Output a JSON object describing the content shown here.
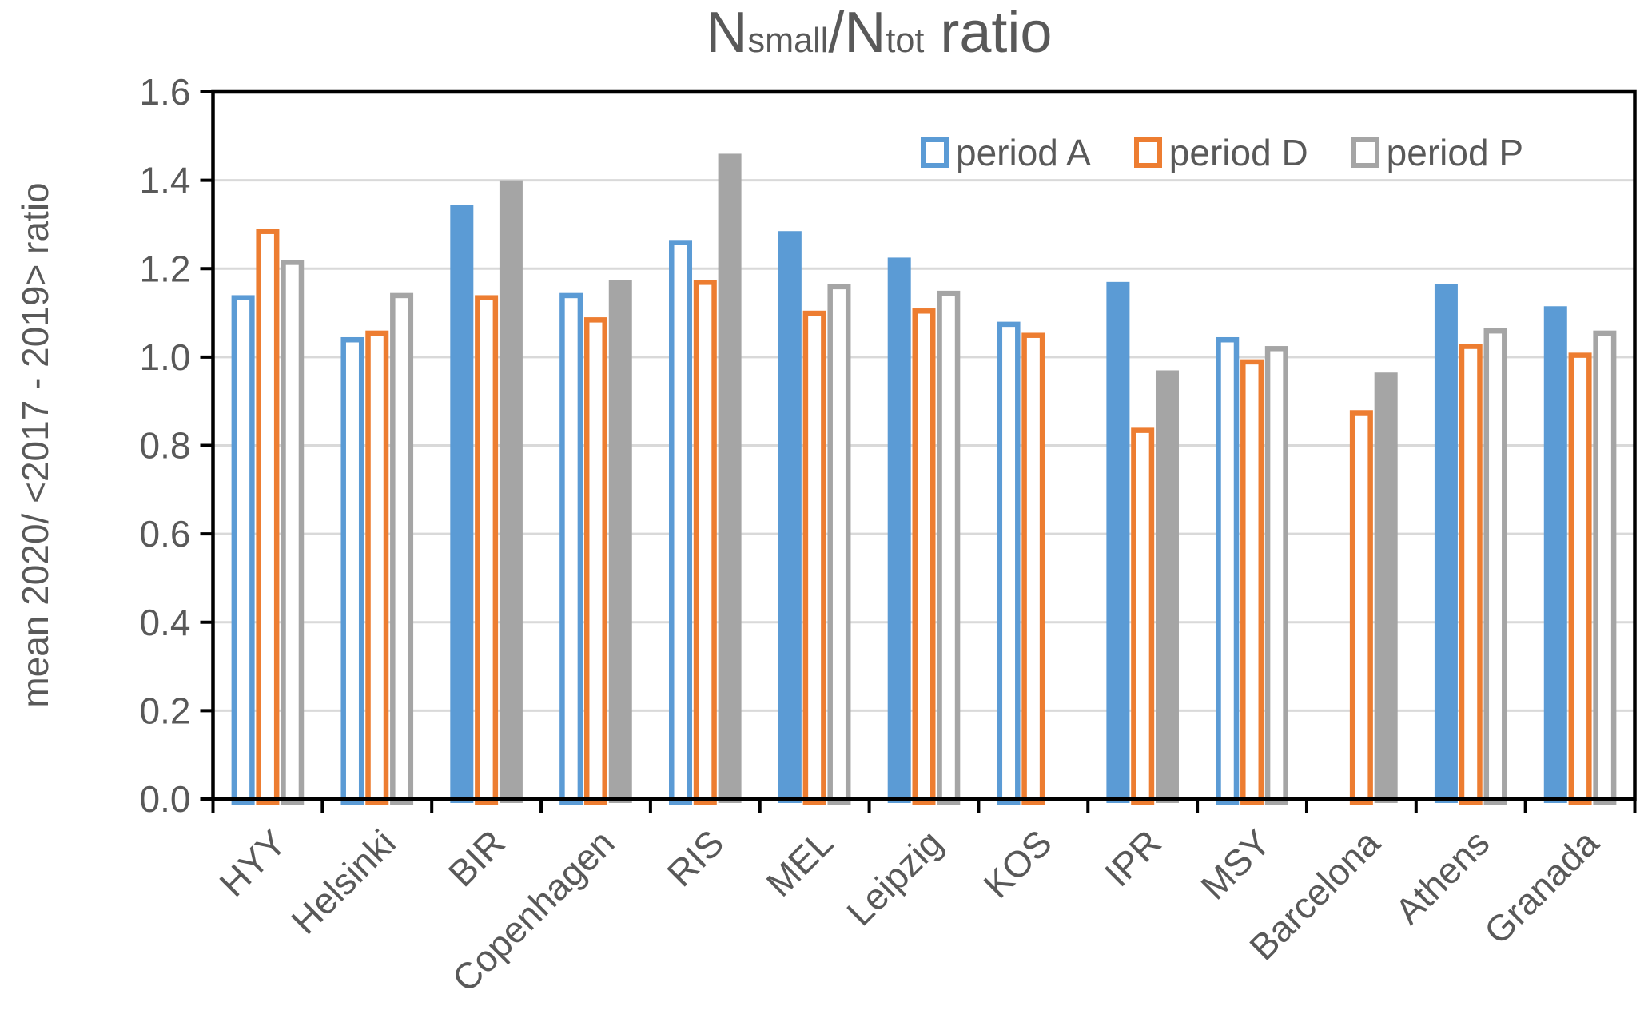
{
  "title": {
    "part1": "N",
    "part2": "small",
    "part3": "/N",
    "part4": "tot",
    "part5": " ratio",
    "full": "Nsmall/Ntot ratio"
  },
  "y_axis": {
    "title": "mean 2020/ <2017 - 2019> ratio",
    "min": 0.0,
    "max": 1.6,
    "step": 0.2,
    "tick_labels": [
      "0.0",
      "0.2",
      "0.4",
      "0.6",
      "0.8",
      "1.0",
      "1.2",
      "1.4",
      "1.6"
    ]
  },
  "legend": {
    "items": [
      "period A",
      "period D",
      "period P"
    ],
    "position": "top-right-inside",
    "marker_style": "hollow-square"
  },
  "colors": {
    "period_a": "#5B9BD5",
    "period_d": "#ED7D31",
    "period_p": "#A5A5A5",
    "text": "#595959",
    "gridline": "#D9D9D9",
    "axis": "#000000",
    "hollow_fill": "#FFFFFF"
  },
  "chart_data": {
    "type": "bar",
    "title": "Nsmall/Ntot ratio",
    "ylabel": "mean 2020/ <2017 - 2019> ratio",
    "ylim": [
      0.0,
      1.6
    ],
    "ytick_step": 0.2,
    "grid": true,
    "legend_position": "top-right-inside",
    "bar_style_note": "solid=true bars are filled with series color; solid=false bars are white with thick colored outline; null value = no bar",
    "categories": [
      "HYY",
      "Helsinki",
      "BIR",
      "Copenhagen",
      "RIS",
      "MEL",
      "Leipzig",
      "KOS",
      "IPR",
      "MSY",
      "Barcelona",
      "Athens",
      "Granada"
    ],
    "series": [
      {
        "name": "period A",
        "color": "#5B9BD5",
        "values": [
          1.14,
          1.045,
          1.345,
          1.145,
          1.265,
          1.285,
          1.225,
          1.08,
          1.17,
          1.045,
          null,
          1.165,
          1.115
        ],
        "solid": [
          false,
          false,
          true,
          false,
          false,
          true,
          true,
          false,
          true,
          false,
          null,
          true,
          true
        ]
      },
      {
        "name": "period D",
        "color": "#ED7D31",
        "values": [
          1.29,
          1.06,
          1.14,
          1.09,
          1.175,
          1.105,
          1.11,
          1.055,
          0.84,
          0.995,
          0.88,
          1.03,
          1.01
        ],
        "solid": [
          false,
          false,
          false,
          false,
          false,
          false,
          false,
          false,
          false,
          false,
          false,
          false,
          false
        ]
      },
      {
        "name": "period P",
        "color": "#A5A5A5",
        "values": [
          1.22,
          1.145,
          1.4,
          1.175,
          1.46,
          1.165,
          1.15,
          null,
          0.97,
          1.025,
          0.965,
          1.065,
          1.06
        ],
        "solid": [
          false,
          false,
          true,
          true,
          true,
          false,
          false,
          null,
          true,
          false,
          true,
          false,
          false
        ]
      }
    ]
  }
}
